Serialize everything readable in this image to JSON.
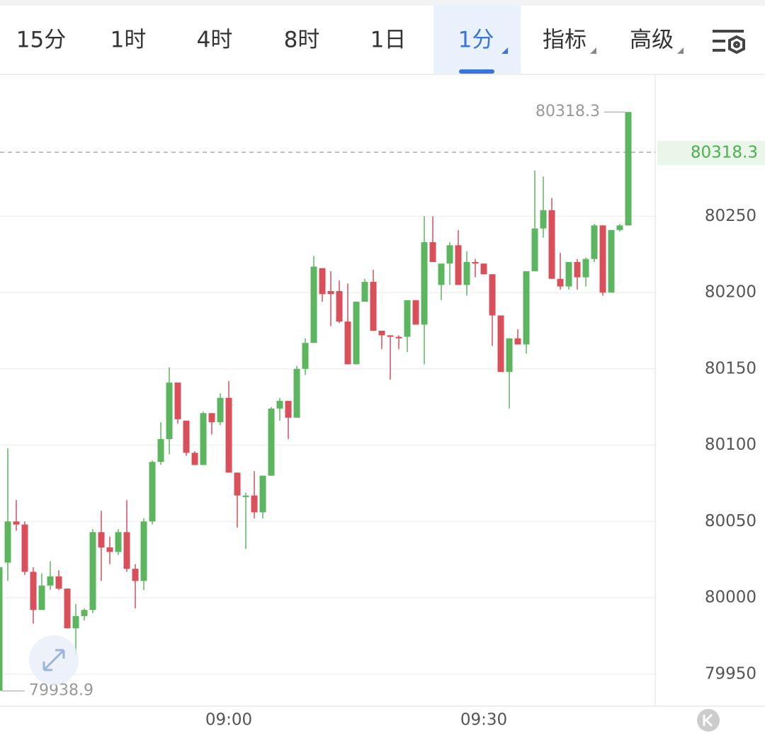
{
  "tabs": {
    "items": [
      "15分",
      "1时",
      "4时",
      "8时",
      "1日",
      "1分",
      "指标",
      "高级"
    ],
    "active": 5
  },
  "chart_data": {
    "type": "candlestick",
    "categories": [
      null,
      null,
      null,
      null,
      null,
      null,
      null,
      null,
      null,
      null,
      null,
      null,
      null,
      null,
      null,
      null,
      null,
      null,
      null,
      null,
      null,
      null,
      null,
      null,
      null,
      null,
      null,
      "09:00",
      null,
      null,
      null,
      null,
      null,
      null,
      null,
      null,
      null,
      null,
      null,
      null,
      null,
      null,
      null,
      null,
      null,
      null,
      null,
      null,
      null,
      null,
      null,
      null,
      null,
      null,
      null,
      null,
      null,
      "09:30",
      null,
      null,
      null,
      null,
      null,
      null,
      null,
      null,
      null,
      null,
      null,
      null,
      null,
      null,
      null,
      null,
      null
    ],
    "open": [
      79939,
      80023,
      80050,
      80048,
      80017,
      79992,
      80008,
      80014,
      80006,
      79980,
      79988,
      79992,
      80043,
      80033,
      80030,
      80043,
      80019,
      80011,
      80050,
      80089,
      80104,
      80141,
      80116,
      80095,
      80087,
      80121,
      80115,
      80131,
      80082,
      80066,
      80067,
      80056,
      80080,
      80124,
      80129,
      80118,
      80150,
      80167,
      80216,
      80201,
      80201,
      80181,
      80153,
      80194,
      80207,
      80175,
      80172,
      80171,
      80171,
      80195,
      80179,
      80233,
      80205,
      80219,
      80231,
      80205,
      80220,
      80219,
      80212,
      80185,
      80148,
      80170,
      80166,
      80214,
      80242,
      80254,
      80209,
      80204,
      80220,
      80210,
      80222,
      80244,
      80200,
      80241,
      80244
    ],
    "high": [
      80030,
      80098,
      80064,
      80050,
      80020,
      80016,
      80024,
      80018,
      80006,
      79996,
      79993,
      80045,
      80057,
      80040,
      80045,
      80064,
      80022,
      80052,
      80090,
      80115,
      80151,
      80141,
      80116,
      80096,
      80122,
      80121,
      80134,
      80142,
      80082,
      80069,
      80083,
      80080,
      80125,
      80131,
      80129,
      80152,
      80170,
      80224,
      80216,
      80214,
      80208,
      80206,
      80194,
      80209,
      80215,
      80175,
      80172,
      80172,
      80195,
      80195,
      80250,
      80250,
      80219,
      80233,
      80241,
      80227,
      80222,
      80219,
      80212,
      80185,
      80170,
      80176,
      80214,
      80280,
      80276,
      80262,
      80226,
      80220,
      80222,
      80223,
      80245,
      80244,
      80241,
      80245,
      80318.3
    ],
    "low": [
      79938.9,
      80011,
      80044,
      80015,
      79983,
      79992,
      80005,
      80005,
      79980,
      79963,
      79985,
      79990,
      80011,
      80022,
      80028,
      80017,
      79993,
      80005,
      80048,
      80087,
      80094,
      80114,
      80093,
      80087,
      80087,
      80107,
      80113,
      80082,
      80046,
      80032,
      80052,
      80052,
      80080,
      80116,
      80104,
      80118,
      80146,
      80167,
      80194,
      80178,
      80180,
      80153,
      80153,
      80194,
      80175,
      80163,
      80143,
      80163,
      80161,
      80179,
      80153,
      80220,
      80195,
      80205,
      80205,
      80198,
      80210,
      80212,
      80165,
      80148,
      80124,
      80166,
      80160,
      80214,
      80236,
      80209,
      80202,
      80202,
      80202,
      80204,
      80220,
      80198,
      80200,
      80240,
      80244
    ],
    "close": [
      80020,
      80050,
      80048,
      80017,
      79992,
      80008,
      80014,
      80006,
      79980,
      79988,
      79992,
      80043,
      80033,
      80030,
      80043,
      80019,
      80011,
      80050,
      80089,
      80104,
      80141,
      80117,
      80095,
      80087,
      80121,
      80115,
      80131,
      80082,
      80067,
      80067,
      80056,
      80080,
      80124,
      80129,
      80118,
      80150,
      80167,
      80217,
      80199,
      80199,
      80181,
      80153,
      80194,
      80207,
      80175,
      80172,
      80171,
      80170,
      80195,
      80179,
      80233,
      80220,
      80219,
      80231,
      80205,
      80220,
      80219,
      80212,
      80185,
      80148,
      80170,
      80166,
      80214,
      80242,
      80254,
      80209,
      80204,
      80220,
      80210,
      80222,
      80244,
      80200,
      80241,
      80244,
      80318.3
    ],
    "up_color": "#5cb660",
    "down_color": "#d9505a",
    "ylim": [
      79929,
      80343
    ],
    "yticks": [
      79950,
      80000,
      80050,
      80100,
      80150,
      80200,
      80250
    ],
    "grid": true,
    "max_label": 80318.3,
    "min_label": 79938.9,
    "last_price": 80318.3
  }
}
